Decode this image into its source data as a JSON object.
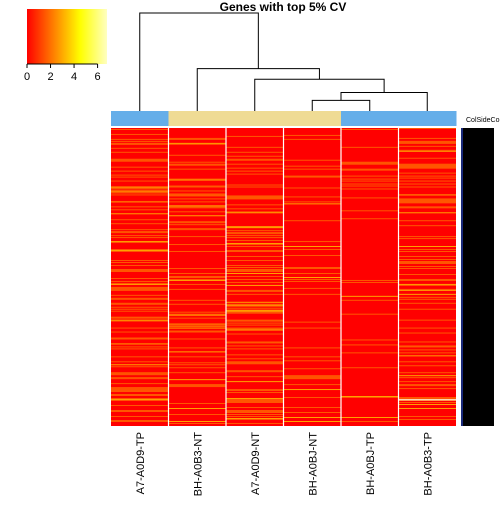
{
  "chart_data": {
    "type": "heatmap",
    "title": "Genes with top 5% CV",
    "columns": [
      "A7-A0D9-TP",
      "BH-A0B3-NT",
      "A7-A0D9-NT",
      "BH-A0BJ-NT",
      "BH-A0BJ-TP",
      "BH-A0B3-TP"
    ],
    "column_groups": [
      "TP",
      "NT",
      "NT",
      "NT",
      "TP",
      "TP"
    ],
    "group_colors": {
      "TP": "#65aee9",
      "NT": "#efdb94"
    },
    "side_label": "ColSideCo",
    "color_key": {
      "ticks": [
        "0",
        "2",
        "4",
        "6"
      ],
      "range": [
        0,
        6.8
      ],
      "colors": [
        "#ff0000",
        "#ff8000",
        "#ffff00",
        "#ffffc0"
      ]
    },
    "cell_scale": {
      "low": "#ff0000",
      "mid": "#ff8000",
      "high": "#ffee00"
    },
    "row_count": 300,
    "column_density": [
      0.35,
      0.22,
      0.28,
      0.12,
      0.08,
      0.25
    ],
    "dendrogram_merges": [
      [
        3,
        4,
        0.04
      ],
      [
        5,
        6,
        0.07
      ],
      [
        2,
        7,
        0.12
      ],
      [
        8,
        1,
        0.16
      ],
      [
        0,
        9,
        0.37
      ]
    ]
  }
}
